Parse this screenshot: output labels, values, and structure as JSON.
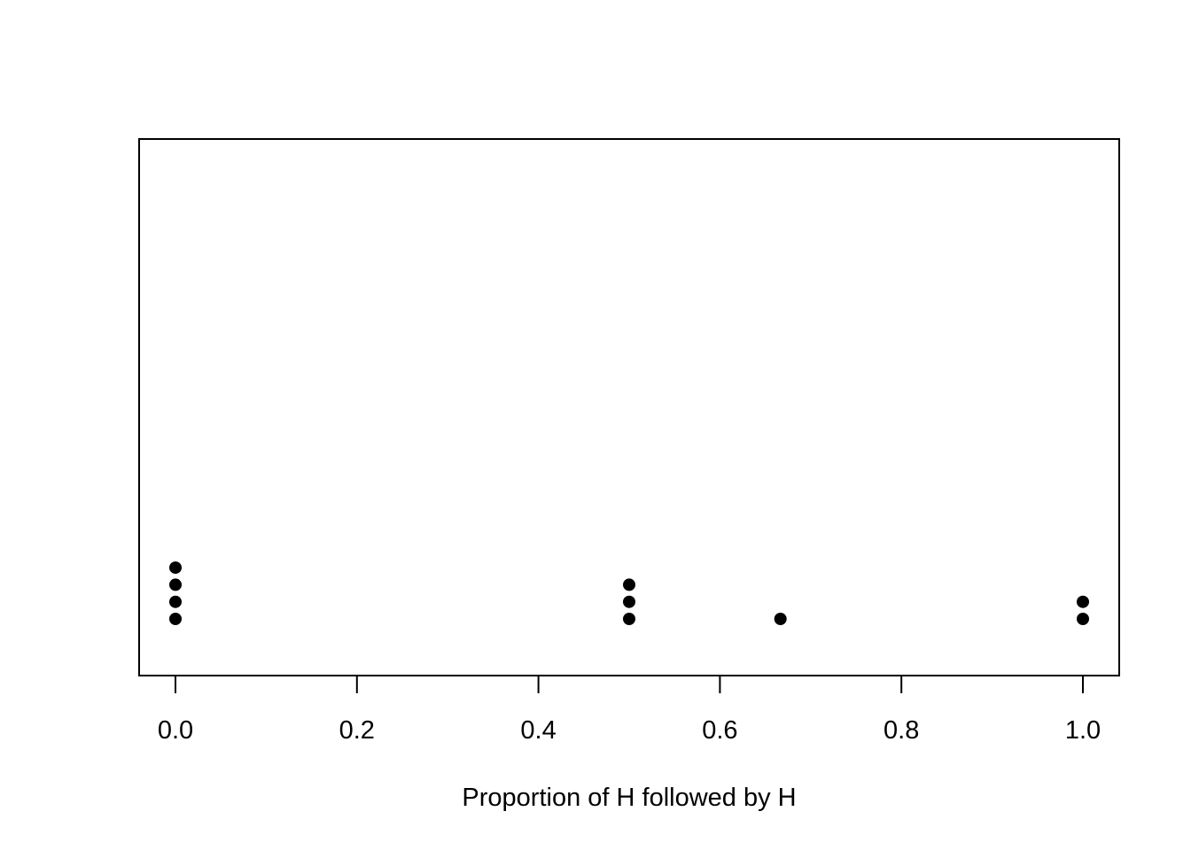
{
  "chart_data": {
    "type": "scatter",
    "plot_style": "stripchart-stacked",
    "title": "",
    "xlabel": "Proportion of H followed by H",
    "ylabel": "",
    "xlim": [
      -0.02,
      1.08
    ],
    "x_ticks": [
      0.0,
      0.2,
      0.4,
      0.6,
      0.8,
      1.0
    ],
    "x_tick_labels": [
      "0.0",
      "0.2",
      "0.4",
      "0.6",
      "0.8",
      "1.0"
    ],
    "y_axis_shown": false,
    "grid": false,
    "legend": "none",
    "points": [
      {
        "x": 0.0,
        "stack": 1
      },
      {
        "x": 0.0,
        "stack": 2
      },
      {
        "x": 0.0,
        "stack": 3
      },
      {
        "x": 0.0,
        "stack": 4
      },
      {
        "x": 0.5,
        "stack": 1
      },
      {
        "x": 0.5,
        "stack": 2
      },
      {
        "x": 0.5,
        "stack": 3
      },
      {
        "x": 0.6667,
        "stack": 1
      },
      {
        "x": 1.0,
        "stack": 1
      },
      {
        "x": 1.0,
        "stack": 2
      }
    ],
    "point_color": "#000000"
  }
}
